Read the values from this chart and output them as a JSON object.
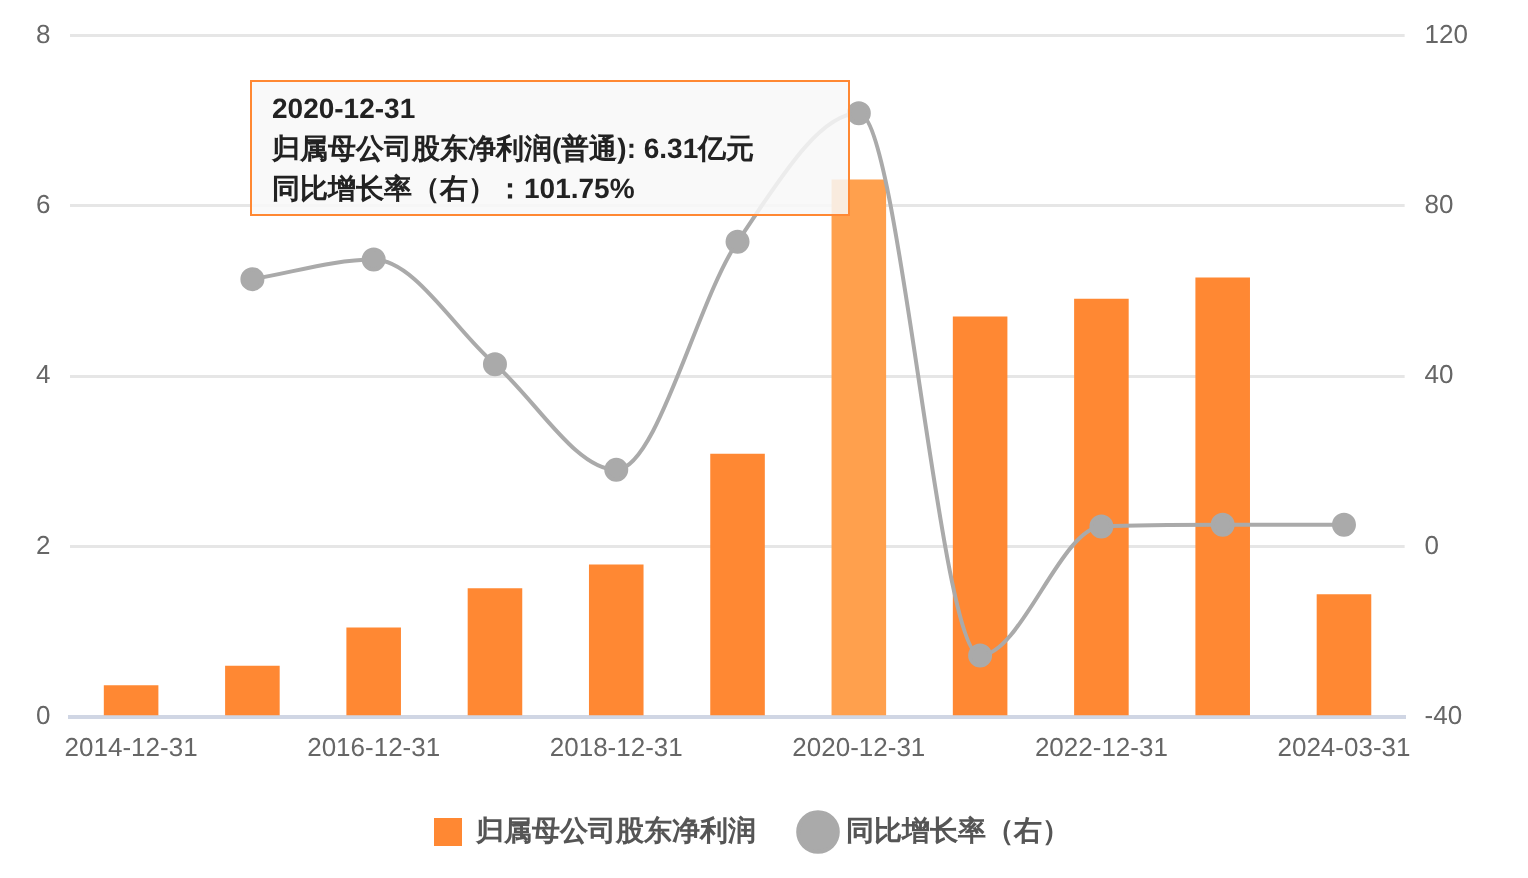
{
  "chart_data": {
    "type": "bar",
    "categories": [
      "2014-12-31",
      null,
      "2016-12-31",
      null,
      "2018-12-31",
      null,
      "2020-12-31",
      null,
      "2022-12-31",
      null,
      "2024-03-31"
    ],
    "series": [
      {
        "name": "归属母公司股东净利润",
        "color": "#ff8833",
        "colors": [
          "#ff8833",
          "#ff8833",
          "#ff8833",
          "#ff8833",
          "#ff8833",
          "#ff8833",
          "#ffa04d",
          "#ff8833",
          "#ff8833",
          "#ff8833",
          "#ff8833"
        ],
        "values": [
          0.37,
          0.6,
          1.05,
          1.51,
          1.79,
          3.09,
          6.31,
          4.7,
          4.91,
          5.16,
          1.44
        ]
      },
      {
        "name": "同比增长率（右）",
        "type": "line",
        "axis": "y2",
        "color": "#aaaaaa",
        "values": [
          null,
          62.8,
          67.4,
          42.8,
          18,
          71.6,
          101.75,
          -25.6,
          4.7,
          5.1,
          5.1
        ]
      }
    ],
    "ylim": [
      0,
      8
    ],
    "yticks": [
      0,
      2,
      4,
      6,
      8
    ],
    "y2lim": [
      -40,
      120
    ],
    "y2ticks": [
      -40,
      0,
      40,
      80,
      120
    ],
    "grid": "y",
    "legend": "bottom",
    "marker": "circle",
    "annotations": [
      "2020-12-31",
      "归属母公司股东净利润(普通): 6.31亿元",
      "同比增长率（右）：101.75%"
    ]
  }
}
